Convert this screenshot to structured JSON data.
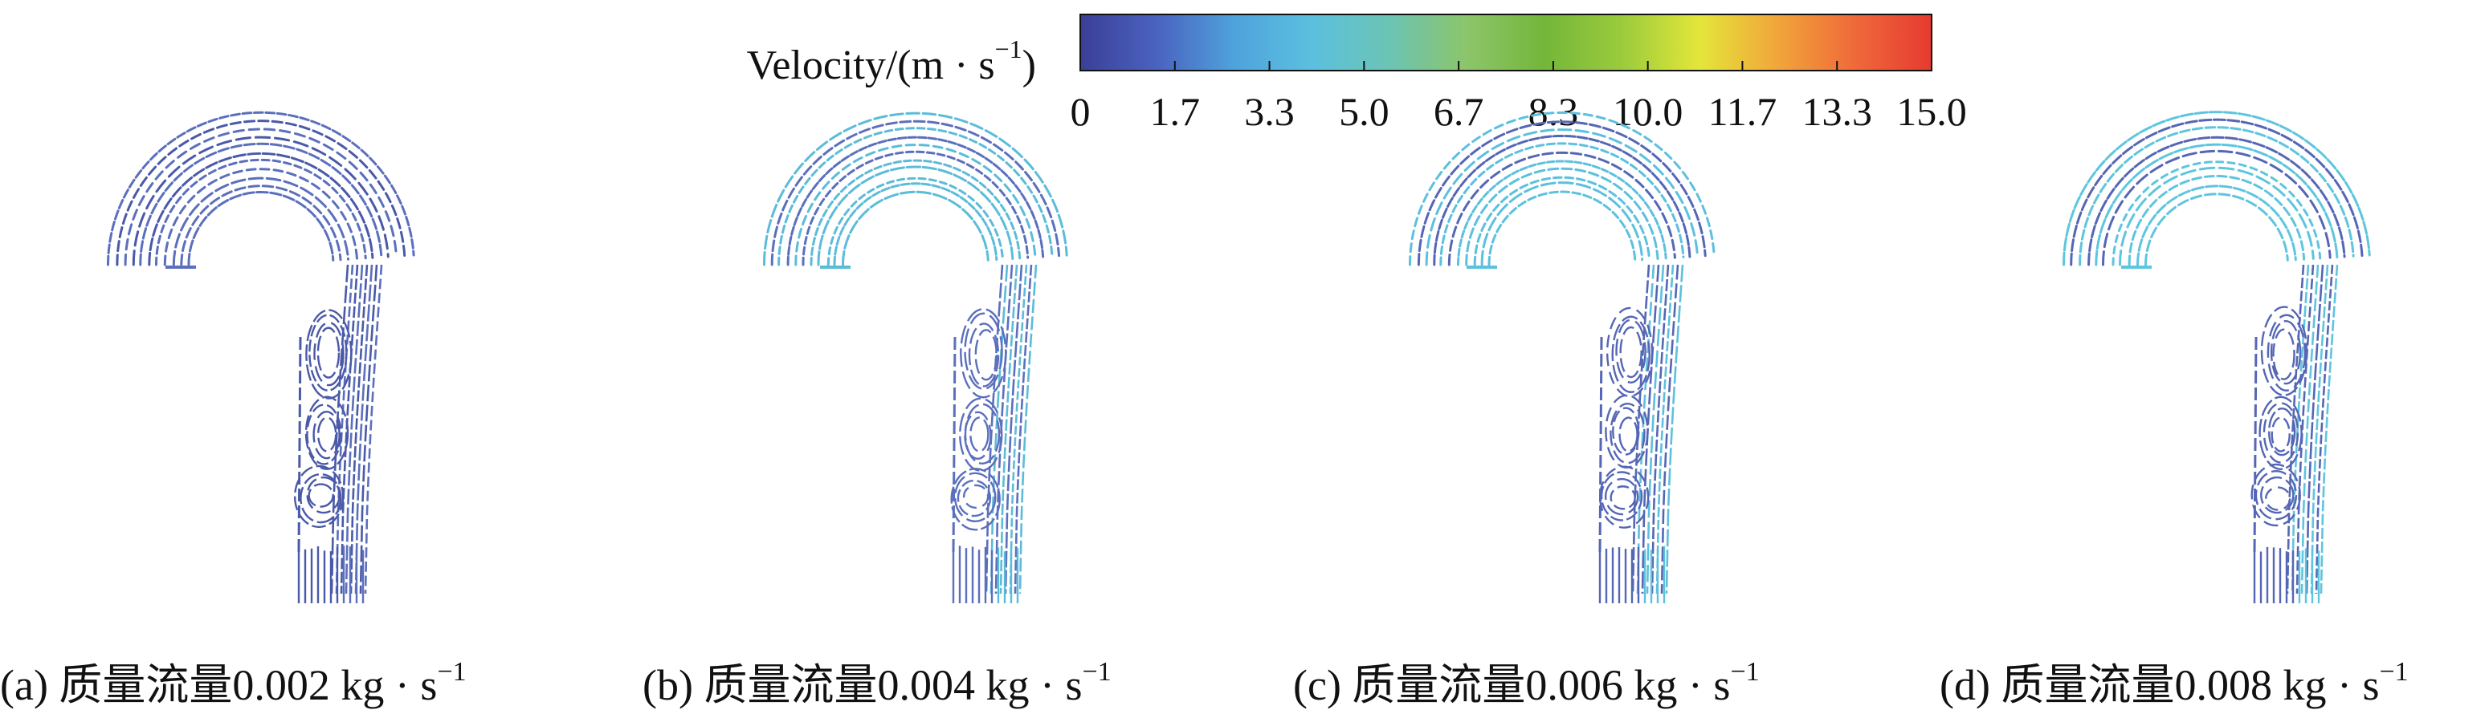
{
  "legend": {
    "title_main": "Velocity/(m · s",
    "title_exp": "−1",
    "title_close": ")",
    "range": [
      0,
      15.0
    ],
    "tick_labels": [
      "0",
      "1.7",
      "3.3",
      "5.0",
      "6.7",
      "8.3",
      "10.0",
      "11.7",
      "13.3",
      "15.0"
    ],
    "colormap": [
      "#3b3f96",
      "#4a63c0",
      "#4fa3dc",
      "#5bc0de",
      "#6cc4b4",
      "#8cc56a",
      "#74b63a",
      "#9bcb3c",
      "#e4e63a",
      "#f1a63b",
      "#ef6a3a",
      "#e63a30"
    ]
  },
  "panels": [
    {
      "label": "(a) 质量流量0.002 kg · s",
      "exp": "−1",
      "velocity_level": 0.08,
      "trail_color": "#4a59a8",
      "accent_color": "#5b6fbd"
    },
    {
      "label": "(b) 质量流量0.004 kg · s",
      "exp": "−1",
      "velocity_level": 0.22,
      "trail_color": "#5b6fbd",
      "accent_color": "#5bbcd9"
    },
    {
      "label": "(c) 质量流量0.006 kg · s",
      "exp": "−1",
      "velocity_level": 0.26,
      "trail_color": "#5566b5",
      "accent_color": "#5cc0de"
    },
    {
      "label": "(d) 质量流量0.008 kg · s",
      "exp": "−1",
      "velocity_level": 0.3,
      "trail_color": "#5566b5",
      "accent_color": "#5ec5df"
    }
  ]
}
